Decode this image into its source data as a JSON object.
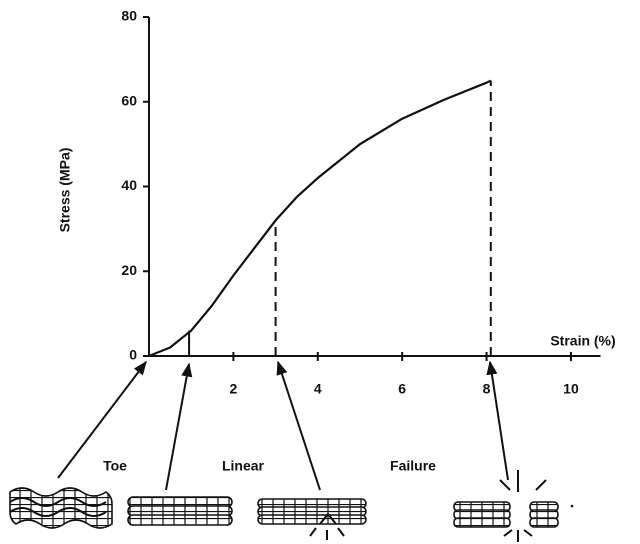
{
  "chart_data": {
    "type": "line",
    "x_label": "Strain (%)",
    "y_label": "Stress (MPa)",
    "x": [
      0,
      0.5,
      1,
      1.5,
      2,
      2.5,
      3,
      3.5,
      4,
      5,
      6,
      7,
      8,
      8.1
    ],
    "series": [
      {
        "color": "#111111",
        "values": [
          0,
          2,
          6,
          12,
          19,
          25.5,
          32,
          37.5,
          42,
          50,
          56,
          60.5,
          64.5,
          65
        ]
      }
    ],
    "xlim": [
      0,
      10.7
    ],
    "ylim": [
      0,
      80
    ],
    "xticks": [
      2,
      4,
      6,
      8,
      10
    ],
    "yticks": [
      0,
      20,
      40,
      60,
      80
    ],
    "markers": [
      {
        "x": 0.95,
        "y": 6,
        "dashed": false
      },
      {
        "x": 3,
        "y": 32,
        "dashed": true
      },
      {
        "x": 8.1,
        "y": 65,
        "dashed": true
      }
    ],
    "annotations": [
      "Toe",
      "Linear",
      "Failure"
    ]
  }
}
